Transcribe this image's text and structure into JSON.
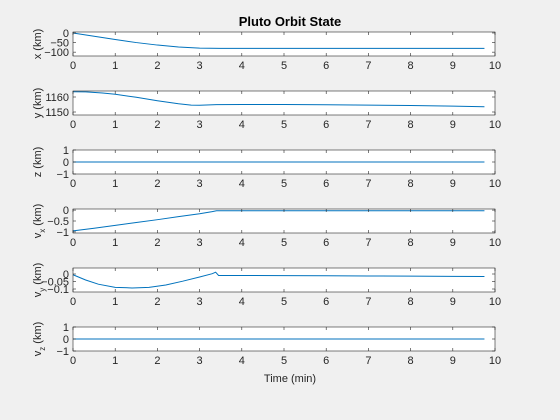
{
  "chart_data": {
    "type": "line",
    "title": "Pluto Orbit State",
    "xlabel": "Time (min)",
    "xlim": [
      0,
      10
    ],
    "xticks": [
      0,
      1,
      2,
      3,
      4,
      5,
      6,
      7,
      8,
      9,
      10
    ],
    "series_color": "#0072bd",
    "panels": [
      {
        "ylabel": "x (km)",
        "ylim": [
          -120,
          5
        ],
        "yticks": [
          -100,
          -50,
          0
        ],
        "series": [
          {
            "x": [
              0,
              0.5,
              1,
              1.5,
              2,
              2.5,
              3,
              3.5,
              4,
              5,
              6,
              7,
              8,
              9,
              9.75
            ],
            "y": [
              0,
              -17,
              -34,
              -50,
              -63,
              -73,
              -79,
              -80,
              -80,
              -80,
              -80,
              -80,
              -80,
              -80,
              -80
            ]
          }
        ]
      },
      {
        "ylabel": "y (km)",
        "ylim": [
          1148,
          1164
        ],
        "yticks": [
          1150,
          1160
        ],
        "series": [
          {
            "x": [
              0,
              0.3,
              0.7,
              1,
              1.5,
              2,
              2.5,
              2.8,
              3,
              3.4,
              4,
              5,
              6,
              7,
              8,
              9,
              9.75
            ],
            "y": [
              1163.5,
              1163.4,
              1162.7,
              1161.8,
              1159.8,
              1157.5,
              1155.5,
              1154.6,
              1154.5,
              1154.9,
              1155,
              1155,
              1154.8,
              1154.6,
              1154.3,
              1153.9,
              1153.5
            ]
          }
        ]
      },
      {
        "ylabel": "z (km)",
        "ylim": [
          -1,
          1
        ],
        "yticks": [
          -1,
          0,
          1
        ],
        "series": [
          {
            "x": [
              0,
              9.75
            ],
            "y": [
              0,
              0
            ]
          }
        ]
      },
      {
        "ylabel": "v_x (km)",
        "ylim": [
          -1.05,
          0.05
        ],
        "yticks": [
          -1,
          -0.5,
          0
        ],
        "series": [
          {
            "x": [
              0,
              0.5,
              1,
              1.5,
              2,
              2.5,
              3,
              3.3,
              3.4,
              4,
              5,
              6,
              7,
              8,
              9,
              9.75
            ],
            "y": [
              -0.95,
              -0.83,
              -0.7,
              -0.57,
              -0.44,
              -0.3,
              -0.17,
              -0.07,
              -0.03,
              -0.03,
              -0.03,
              -0.03,
              -0.03,
              -0.03,
              -0.03,
              -0.03
            ]
          }
        ]
      },
      {
        "ylabel": "v_y (km)",
        "ylim": [
          -0.12,
          0.04
        ],
        "yticks": [
          -0.1,
          -0.05,
          0
        ],
        "series": [
          {
            "x": [
              0,
              0.3,
              0.6,
              1,
              1.4,
              1.8,
              2.2,
              2.6,
              3,
              3.3,
              3.38,
              3.45,
              4,
              5,
              6,
              7,
              8,
              9,
              9.75
            ],
            "y": [
              -0.005,
              -0.04,
              -0.068,
              -0.089,
              -0.093,
              -0.089,
              -0.073,
              -0.048,
              -0.02,
              0.002,
              0.012,
              -0.01,
              -0.01,
              -0.011,
              -0.012,
              -0.013,
              -0.014,
              -0.016,
              -0.017
            ]
          }
        ]
      },
      {
        "ylabel": "v_z (km)",
        "ylim": [
          -1,
          1
        ],
        "yticks": [
          -1,
          0,
          1
        ],
        "series": [
          {
            "x": [
              0,
              9.75
            ],
            "y": [
              0,
              0
            ]
          }
        ]
      }
    ]
  }
}
